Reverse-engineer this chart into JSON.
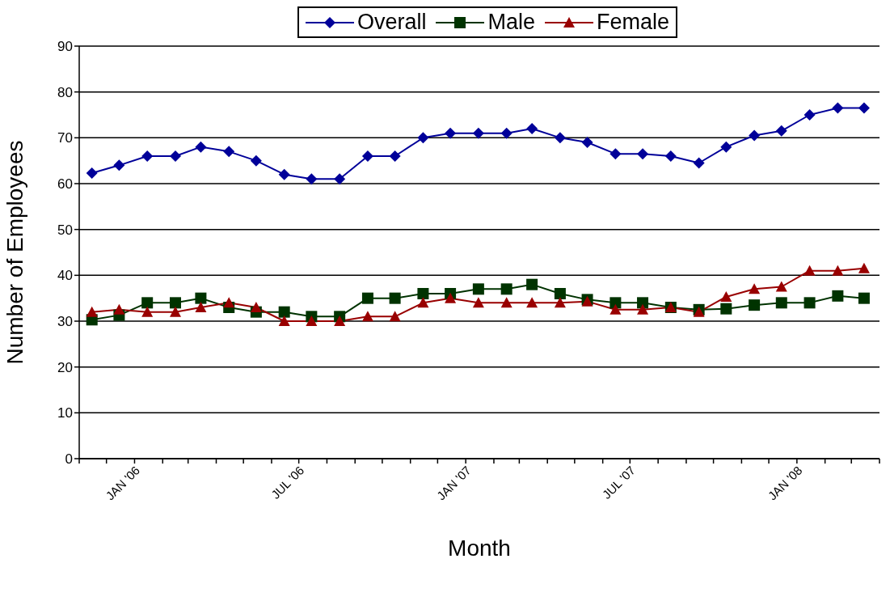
{
  "chart_data": {
    "type": "line",
    "xlabel": "Month",
    "ylabel": "Number of Employees",
    "x": [
      "2005-11-15",
      "2005-12-15",
      "2006-01-15",
      "2006-02-15",
      "2006-03-15",
      "2006-04-15",
      "2006-05-15",
      "2006-06-15",
      "2006-07-15",
      "2006-08-15",
      "2006-09-15",
      "2006-10-15",
      "2006-11-15",
      "2006-12-15",
      "2007-01-15",
      "2007-02-15",
      "2007-03-15",
      "2007-04-15",
      "2007-05-15",
      "2007-06-15",
      "2007-07-15",
      "2007-08-15",
      "2007-09-15",
      "2007-10-15",
      "2007-11-15",
      "2007-12-15",
      "2008-01-15",
      "2008-02-15",
      "2008-03-15"
    ],
    "series": [
      {
        "name": "Overall",
        "color": "#000099",
        "marker": "diamond",
        "values": [
          62.3,
          64,
          66,
          66,
          68,
          67,
          65,
          62,
          61,
          61,
          66,
          66,
          70,
          71,
          71,
          71,
          72,
          70,
          69,
          66.5,
          66.5,
          66,
          64.5,
          68,
          70.5,
          71.5,
          75,
          76.5,
          76.5
        ]
      },
      {
        "name": "Male",
        "color": "#003300",
        "marker": "square",
        "values": [
          30.3,
          31.3,
          34,
          34,
          35,
          33,
          32,
          32,
          31,
          31,
          35,
          35,
          36,
          36,
          37,
          37,
          38,
          36,
          34.7,
          34,
          34,
          33,
          32.5,
          32.7,
          33.5,
          34,
          34,
          35.5,
          35
        ]
      },
      {
        "name": "Female",
        "color": "#990000",
        "marker": "triangle",
        "values": [
          32,
          32.5,
          32,
          32,
          33,
          34,
          33,
          30,
          30,
          30,
          31,
          31,
          34,
          35,
          34,
          34,
          34,
          34,
          34.3,
          32.5,
          32.5,
          33,
          32,
          35.3,
          37,
          37.5,
          41,
          41,
          41.5
        ]
      }
    ],
    "xlim": [
      "2005-11",
      "2008-04"
    ],
    "xticks": [
      {
        "value": "2005-11",
        "label": null
      },
      {
        "value": "2005-12",
        "label": null
      },
      {
        "value": "2006-01",
        "label": "JAN '06"
      },
      {
        "value": "2006-02",
        "label": null
      },
      {
        "value": "2006-03",
        "label": null
      },
      {
        "value": "2006-04",
        "label": null
      },
      {
        "value": "2006-05",
        "label": null
      },
      {
        "value": "2006-06",
        "label": null
      },
      {
        "value": "2006-07",
        "label": "JUL '06"
      },
      {
        "value": "2006-08",
        "label": null
      },
      {
        "value": "2006-09",
        "label": null
      },
      {
        "value": "2006-10",
        "label": null
      },
      {
        "value": "2006-11",
        "label": null
      },
      {
        "value": "2006-12",
        "label": null
      },
      {
        "value": "2007-01",
        "label": "JAN '07"
      },
      {
        "value": "2007-02",
        "label": null
      },
      {
        "value": "2007-03",
        "label": null
      },
      {
        "value": "2007-04",
        "label": null
      },
      {
        "value": "2007-05",
        "label": null
      },
      {
        "value": "2007-06",
        "label": null
      },
      {
        "value": "2007-07",
        "label": "JUL '07"
      },
      {
        "value": "2007-08",
        "label": null
      },
      {
        "value": "2007-09",
        "label": null
      },
      {
        "value": "2007-10",
        "label": null
      },
      {
        "value": "2007-11",
        "label": null
      },
      {
        "value": "2007-12",
        "label": null
      },
      {
        "value": "2008-01",
        "label": "JAN '08"
      },
      {
        "value": "2008-02",
        "label": null
      },
      {
        "value": "2008-03",
        "label": null
      },
      {
        "value": "2008-04",
        "label": null
      }
    ],
    "ylim": [
      0,
      90
    ],
    "yticks": [
      0,
      10,
      20,
      30,
      40,
      50,
      60,
      70,
      80,
      90
    ],
    "grid": "y",
    "legend": "top",
    "line_style": "solid"
  }
}
